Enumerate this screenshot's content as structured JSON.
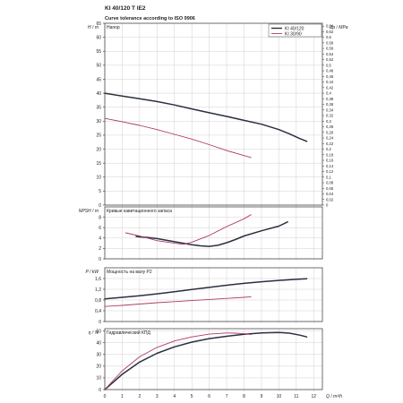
{
  "header": {
    "title": "KI 40/120 T IE2",
    "subtitle": "Curve tolerance according to ISO 9906"
  },
  "colors": {
    "series_1": "#2a3040",
    "series_2": "#b03a68"
  },
  "legend": {
    "placement": "top-right",
    "entries": [
      "KI 40/120",
      "KI 30/90"
    ]
  },
  "chart_data": [
    {
      "type": "line",
      "panel": "head",
      "title": "Напор",
      "ylabel": "H / m",
      "ylabel_right": "Δp / MPa",
      "xlim": [
        0,
        12.5
      ],
      "ylim": [
        0,
        65
      ],
      "y_ticks": [
        0,
        5,
        10,
        15,
        20,
        25,
        30,
        35,
        40,
        45,
        50,
        55,
        60,
        65
      ],
      "y_ticks_right": [
        "0",
        "0,02",
        "0,04",
        "0,06",
        "0,08",
        "0,1",
        "0,12",
        "0,14",
        "0,16",
        "0,18",
        "0,2",
        "0,22",
        "0,24",
        "0,26",
        "0,28",
        "0,3",
        "0,32",
        "0,34",
        "0,36",
        "0,38",
        "0,4",
        "0,42",
        "0,44",
        "0,46",
        "0,48",
        "0,5",
        "0,52",
        "0,54",
        "0,56",
        "0,58",
        "0,6",
        "0,62",
        "0,64"
      ],
      "grid": true,
      "series": [
        {
          "name": "KI 40/120",
          "x": [
            0,
            1,
            2,
            3,
            4,
            5,
            6,
            7,
            8,
            9,
            10,
            10.6,
            11.2,
            11.6
          ],
          "y": [
            40,
            39,
            38,
            37,
            35.8,
            34.4,
            33,
            31.7,
            30.3,
            28.9,
            27,
            25.5,
            23.8,
            22.8
          ]
        },
        {
          "name": "KI 30/90",
          "x": [
            0,
            1,
            2,
            3,
            4,
            5,
            6,
            7,
            8,
            8.4
          ],
          "y": [
            31,
            29.8,
            28.5,
            27,
            25.3,
            23.6,
            21.6,
            19.5,
            17.7,
            17
          ]
        }
      ]
    },
    {
      "type": "line",
      "panel": "npsh",
      "title": "Кривые кавитационного запаса",
      "ylabel": "NPSH / m",
      "xlim": [
        0,
        12.5
      ],
      "ylim": [
        0,
        10
      ],
      "y_ticks": [
        0,
        2,
        4,
        6,
        8
      ],
      "grid": true,
      "series": [
        {
          "name": "KI 40/120",
          "x": [
            1.8,
            2.5,
            3,
            4,
            5,
            5.5,
            6,
            6.5,
            7,
            7.5,
            8,
            9,
            10,
            10.5
          ],
          "y": [
            4.3,
            4.1,
            3.9,
            3.3,
            2.7,
            2.5,
            2.4,
            2.6,
            3.1,
            3.7,
            4.4,
            5.4,
            6.3,
            7.1
          ]
        },
        {
          "name": "KI 30/90",
          "x": [
            1.2,
            2,
            3,
            4,
            4.5,
            5,
            6,
            7,
            8,
            8.4
          ],
          "y": [
            5,
            4.4,
            3.5,
            3,
            2.8,
            3.2,
            4.5,
            6.2,
            7.7,
            8.5
          ]
        }
      ]
    },
    {
      "type": "line",
      "panel": "power",
      "title": "Мощность на валу P2",
      "ylabel": "P / kW",
      "xlim": [
        0,
        12.5
      ],
      "ylim": [
        0,
        2
      ],
      "y_ticks": [
        0,
        0.4,
        0.8,
        1.2,
        1.6
      ],
      "y_tick_labels": [
        "0",
        "0,4",
        "0,8",
        "1,2",
        "1,6"
      ],
      "grid": true,
      "series": [
        {
          "name": "KI 40/120",
          "x": [
            0,
            1,
            2,
            3,
            4,
            5,
            6,
            7,
            8,
            9,
            10,
            11,
            11.6
          ],
          "y": [
            0.84,
            0.9,
            0.96,
            1.03,
            1.11,
            1.19,
            1.27,
            1.35,
            1.42,
            1.48,
            1.53,
            1.57,
            1.59
          ]
        },
        {
          "name": "KI 30/90",
          "x": [
            0,
            1,
            2,
            3,
            4,
            5,
            6,
            7,
            8,
            8.4
          ],
          "y": [
            0.56,
            0.6,
            0.65,
            0.7,
            0.74,
            0.78,
            0.82,
            0.86,
            0.9,
            0.92
          ]
        }
      ]
    },
    {
      "type": "line",
      "panel": "efficiency",
      "title": "Гидравлический КПД",
      "ylabel": "η / %",
      "xlabel": "Q / m³/h",
      "xlim": [
        0,
        12.5
      ],
      "ylim": [
        0,
        52
      ],
      "y_ticks": [
        0,
        10,
        20,
        30,
        40,
        50
      ],
      "x_ticks": [
        0,
        1,
        2,
        3,
        4,
        5,
        6,
        7,
        8,
        9,
        10,
        11,
        12
      ],
      "grid": true,
      "series": [
        {
          "name": "KI 40/120",
          "x": [
            0,
            1,
            2,
            3,
            4,
            5,
            6,
            7,
            8,
            9,
            10,
            10.6,
            11.2,
            11.6
          ],
          "y": [
            0,
            13,
            23.5,
            31,
            36.5,
            40.5,
            43.5,
            45.5,
            47.2,
            48.4,
            48.8,
            48.2,
            46.5,
            45
          ]
        },
        {
          "name": "KI 30/90",
          "x": [
            0,
            1,
            2,
            3,
            4,
            5,
            6,
            7,
            7.5,
            8,
            8.4
          ],
          "y": [
            0,
            16,
            28,
            36,
            41.5,
            45,
            47.3,
            48.3,
            48.2,
            47.7,
            47
          ]
        }
      ]
    }
  ]
}
